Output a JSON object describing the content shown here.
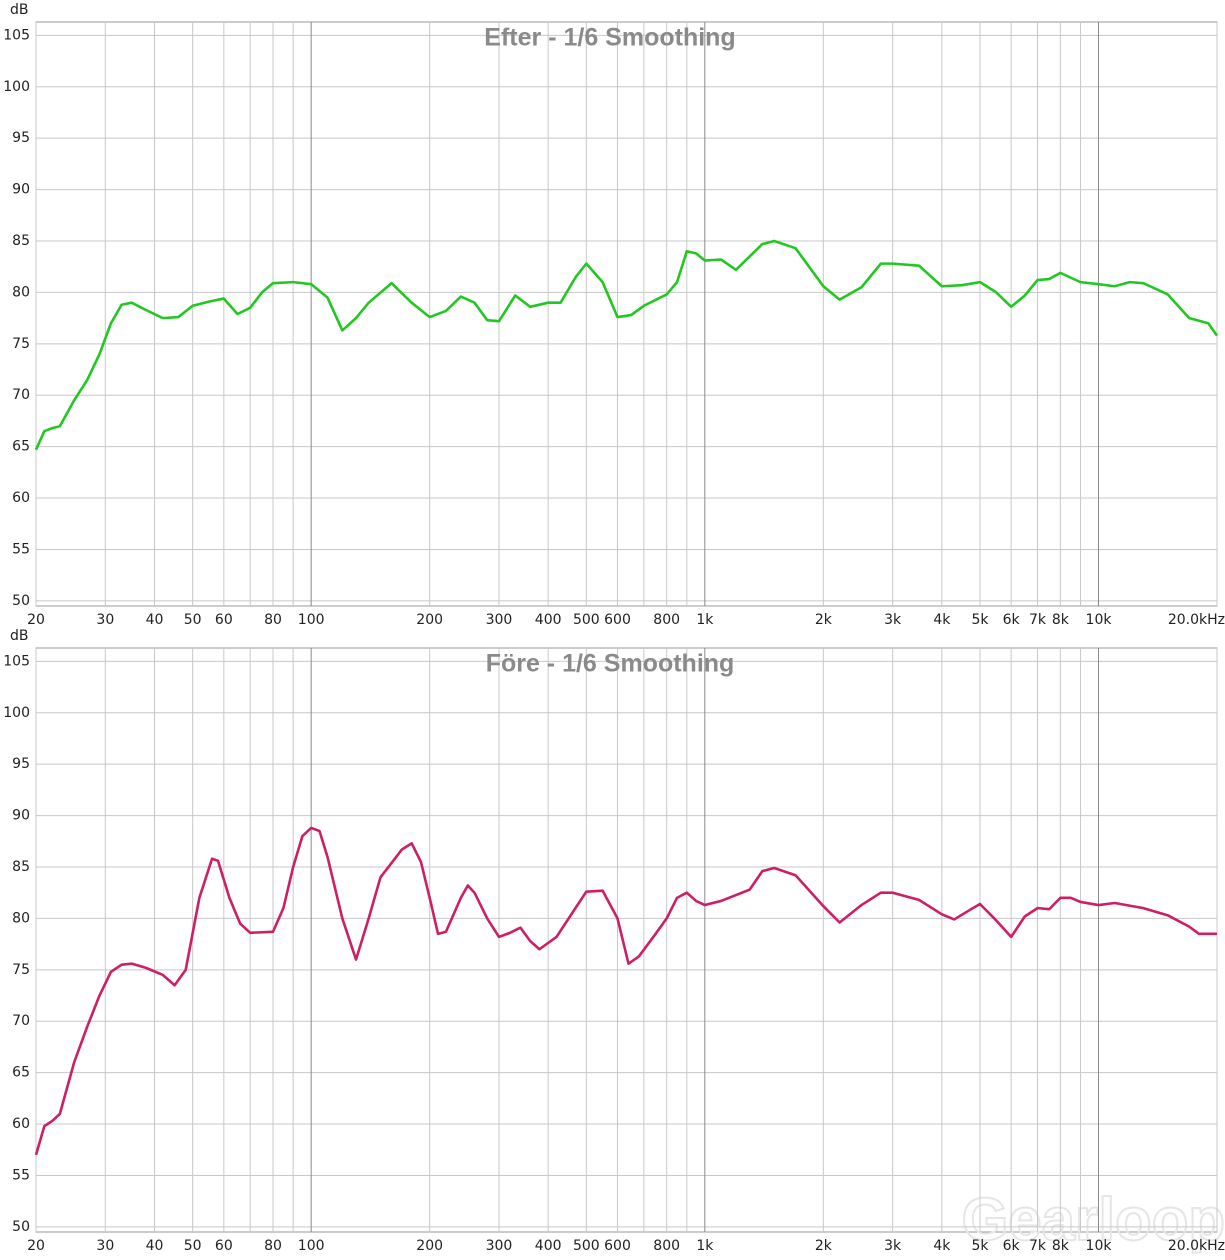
{
  "chart_data": [
    {
      "type": "line",
      "title": "Efter - 1/6 Smoothing",
      "ylabel": "dB",
      "log_x": true,
      "grid": true,
      "color": "#22c722",
      "xlim": [
        20,
        20000
      ],
      "ylim": [
        49.5,
        106.3
      ],
      "yticks": [
        50,
        55,
        60,
        65,
        70,
        75,
        80,
        85,
        90,
        95,
        100,
        105
      ],
      "xticks": [
        20,
        30,
        40,
        50,
        60,
        80,
        100,
        200,
        300,
        400,
        500,
        600,
        800,
        {
          "value": 1000,
          "label": "1k"
        },
        {
          "value": 2000,
          "label": "2k"
        },
        {
          "value": 3000,
          "label": "3k"
        },
        {
          "value": 4000,
          "label": "4k"
        },
        {
          "value": 5000,
          "label": "5k"
        },
        {
          "value": 6000,
          "label": "6k"
        },
        {
          "value": 7000,
          "label": "7k"
        },
        {
          "value": 8000,
          "label": "8k"
        },
        {
          "value": 10000,
          "label": "10k"
        },
        {
          "value": 20000,
          "label": "20.0kHz"
        }
      ],
      "xminor_ticks": [
        70,
        90,
        700,
        900,
        9000
      ],
      "x": [
        20,
        21,
        22,
        23,
        25,
        27,
        29,
        31,
        33,
        35,
        38,
        42,
        46,
        50,
        55,
        60,
        65,
        70,
        75,
        80,
        90,
        100,
        110,
        120,
        130,
        140,
        160,
        180,
        200,
        220,
        240,
        260,
        280,
        300,
        330,
        360,
        400,
        430,
        470,
        500,
        550,
        600,
        650,
        700,
        800,
        850,
        900,
        950,
        1000,
        1100,
        1200,
        1300,
        1400,
        1500,
        1700,
        2000,
        2200,
        2500,
        2800,
        3000,
        3500,
        4000,
        4500,
        5000,
        5500,
        6000,
        6500,
        7000,
        7500,
        8000,
        9000,
        10000,
        11000,
        12000,
        13000,
        15000,
        17000,
        19000,
        20000
      ],
      "values": [
        64.7,
        66.5,
        66.8,
        67,
        69.5,
        71.5,
        74,
        77,
        78.8,
        79,
        78.3,
        77.5,
        77.6,
        78.7,
        79.1,
        79.4,
        77.9,
        78.5,
        80,
        80.9,
        81,
        80.8,
        79.5,
        76.3,
        77.5,
        79,
        80.9,
        79,
        77.6,
        78.2,
        79.6,
        79,
        77.3,
        77.2,
        79.7,
        78.6,
        79,
        79,
        81.5,
        82.8,
        81,
        77.6,
        77.8,
        78.7,
        79.8,
        81,
        84,
        83.8,
        83.1,
        83.2,
        82.2,
        83.5,
        84.7,
        85,
        84.3,
        80.6,
        79.3,
        80.5,
        82.8,
        82.8,
        82.6,
        80.6,
        80.7,
        81,
        80,
        78.6,
        79.7,
        81.2,
        81.3,
        81.9,
        81,
        80.8,
        80.6,
        81,
        80.9,
        79.8,
        77.5,
        77,
        75.8
      ]
    },
    {
      "type": "line",
      "title": "Före - 1/6 Smoothing",
      "ylabel": "dB",
      "log_x": true,
      "grid": true,
      "color": "#cc1f66",
      "watermark": "Gearloop",
      "xlim": [
        20,
        20000
      ],
      "ylim": [
        49.5,
        106.3
      ],
      "yticks": [
        50,
        55,
        60,
        65,
        70,
        75,
        80,
        85,
        90,
        95,
        100,
        105
      ],
      "xticks": [
        20,
        30,
        40,
        50,
        60,
        80,
        100,
        200,
        300,
        400,
        500,
        600,
        800,
        {
          "value": 1000,
          "label": "1k"
        },
        {
          "value": 2000,
          "label": "2k"
        },
        {
          "value": 3000,
          "label": "3k"
        },
        {
          "value": 4000,
          "label": "4k"
        },
        {
          "value": 5000,
          "label": "5k"
        },
        {
          "value": 6000,
          "label": "6k"
        },
        {
          "value": 7000,
          "label": "7k"
        },
        {
          "value": 8000,
          "label": "8k"
        },
        {
          "value": 10000,
          "label": "10k"
        },
        {
          "value": 20000,
          "label": "20.0kHz"
        }
      ],
      "xminor_ticks": [
        70,
        90,
        700,
        900,
        9000
      ],
      "x": [
        20,
        21,
        22,
        23,
        25,
        27,
        29,
        31,
        33,
        35,
        38,
        42,
        45,
        48,
        52,
        56,
        58,
        62,
        66,
        70,
        80,
        85,
        90,
        95,
        100,
        105,
        110,
        120,
        130,
        140,
        150,
        170,
        180,
        190,
        200,
        210,
        220,
        240,
        250,
        260,
        280,
        300,
        320,
        340,
        360,
        380,
        420,
        460,
        500,
        550,
        600,
        640,
        680,
        750,
        800,
        850,
        900,
        950,
        1000,
        1100,
        1300,
        1400,
        1500,
        1700,
        2000,
        2200,
        2500,
        2800,
        3000,
        3500,
        4000,
        4300,
        4700,
        5000,
        5500,
        6000,
        6500,
        7000,
        7500,
        8000,
        8500,
        9000,
        10000,
        11000,
        13000,
        15000,
        17000,
        18000,
        20000
      ],
      "values": [
        57,
        59.8,
        60.3,
        61,
        66,
        69.5,
        72.5,
        74.8,
        75.5,
        75.6,
        75.2,
        74.5,
        73.5,
        75,
        82,
        85.8,
        85.6,
        82,
        79.5,
        78.6,
        78.7,
        81,
        85,
        88,
        88.8,
        88.5,
        86,
        80,
        76,
        80,
        84,
        86.7,
        87.3,
        85.5,
        82,
        78.5,
        78.7,
        82,
        83.2,
        82.5,
        80,
        78.2,
        78.6,
        79.1,
        77.8,
        77,
        78.2,
        80.5,
        82.6,
        82.7,
        80,
        75.6,
        76.3,
        78.5,
        80,
        82,
        82.5,
        81.7,
        81.3,
        81.7,
        82.8,
        84.6,
        84.9,
        84.2,
        81.2,
        79.6,
        81.3,
        82.5,
        82.5,
        81.8,
        80.4,
        79.9,
        80.8,
        81.4,
        79.8,
        78.2,
        80.2,
        81,
        80.9,
        82,
        82,
        81.6,
        81.3,
        81.5,
        81,
        80.3,
        79.2,
        78.5,
        78.5
      ]
    }
  ]
}
